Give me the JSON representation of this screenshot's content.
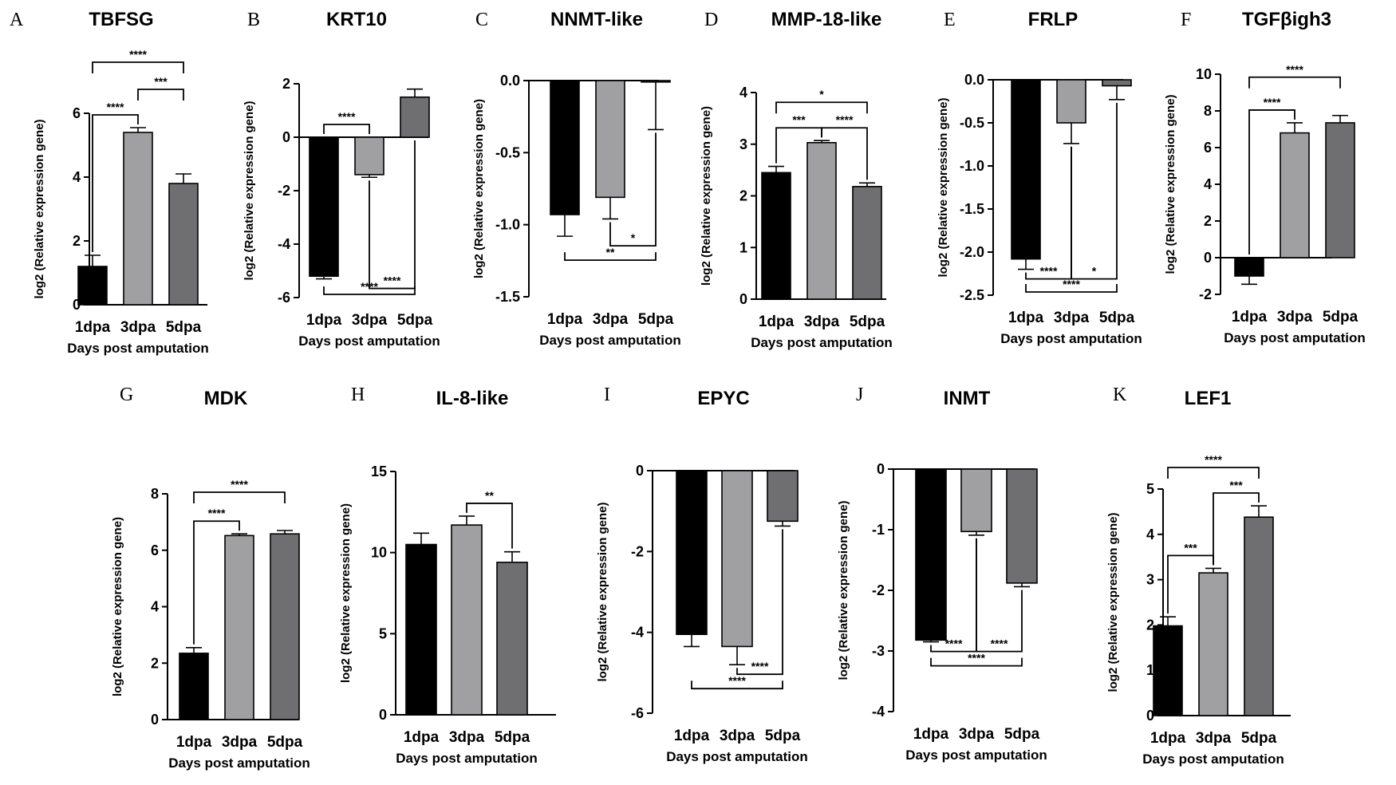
{
  "figure": {
    "bar_colors": [
      "#000000",
      "#a0a0a2",
      "#6f6f71"
    ],
    "categories": [
      "1dpa",
      "3dpa",
      "5dpa"
    ],
    "xlabel": "Days post amputation",
    "ylabel": "log2 (Relative expression gene)"
  },
  "chart_data": [
    {
      "letter": "A",
      "type": "bar",
      "title": "TBFSG",
      "categories": [
        "1dpa",
        "3dpa",
        "5dpa"
      ],
      "values": [
        1.2,
        5.4,
        3.8
      ],
      "errors": [
        0.35,
        0.15,
        0.3
      ],
      "ylim": [
        0,
        6
      ],
      "yticks": [
        0,
        2,
        4,
        6
      ],
      "ytick_labels": [
        "0",
        "2",
        "4",
        "6"
      ],
      "xlabel": "Days post amputation",
      "ylabel": "log2 (Relative expression gene)",
      "significance": [
        {
          "from": 0,
          "to": 1,
          "label": "****",
          "dir": "up",
          "level": 1
        },
        {
          "from": 1,
          "to": 2,
          "label": "***",
          "dir": "up",
          "level": 2
        },
        {
          "from": 0,
          "to": 2,
          "label": "****",
          "dir": "up",
          "level": 3
        }
      ]
    },
    {
      "letter": "B",
      "type": "bar",
      "title": "KRT10",
      "categories": [
        "1dpa",
        "3dpa",
        "5dpa"
      ],
      "values": [
        -5.2,
        -1.4,
        1.5
      ],
      "errors": [
        0.1,
        0.1,
        0.3
      ],
      "ylim": [
        -6,
        2
      ],
      "yticks": [
        -6,
        -4,
        -2,
        0,
        2
      ],
      "ytick_labels": [
        "-6",
        "-4",
        "-2",
        "0",
        "2"
      ],
      "xlabel": "Days post amputation",
      "ylabel": "log2 (Relative expression gene)",
      "significance": [
        {
          "from": 0,
          "to": 1,
          "label": "****",
          "dir": "up",
          "level": 1
        },
        {
          "from": 1,
          "to": 2,
          "label": "****",
          "dir": "down",
          "level": 1
        },
        {
          "from": 0,
          "to": 2,
          "label": "****",
          "dir": "down",
          "level": 2
        }
      ]
    },
    {
      "letter": "C",
      "type": "bar",
      "title": "NNMT-like",
      "categories": [
        "1dpa",
        "3dpa",
        "5dpa"
      ],
      "values": [
        -0.93,
        -0.81,
        -0.01
      ],
      "errors": [
        0.15,
        0.15,
        0.33
      ],
      "ylim": [
        -1.5,
        0
      ],
      "yticks": [
        -1.5,
        -1.0,
        -0.5,
        0.0
      ],
      "ytick_labels": [
        "-1.5",
        "-1.0",
        "-0.5",
        "0.0"
      ],
      "xlabel": "Days post amputation",
      "ylabel": "log2 (Relative expression gene)",
      "significance": [
        {
          "from": 1,
          "to": 2,
          "label": "*",
          "dir": "down",
          "level": 1
        },
        {
          "from": 0,
          "to": 2,
          "label": "**",
          "dir": "down",
          "level": 2
        }
      ]
    },
    {
      "letter": "D",
      "type": "bar",
      "title": "MMP-18-like",
      "categories": [
        "1dpa",
        "3dpa",
        "5dpa"
      ],
      "values": [
        2.45,
        3.03,
        2.18
      ],
      "errors": [
        0.12,
        0.04,
        0.07
      ],
      "ylim": [
        0,
        4
      ],
      "yticks": [
        0,
        1,
        2,
        3,
        4
      ],
      "ytick_labels": [
        "0",
        "1",
        "2",
        "3",
        "4"
      ],
      "xlabel": "Days post amputation",
      "ylabel": "log2 (Relative expression gene)",
      "significance": [
        {
          "from": 0,
          "to": 1,
          "label": "***",
          "dir": "up",
          "level": 1
        },
        {
          "from": 1,
          "to": 2,
          "label": "****",
          "dir": "up",
          "level": 1
        },
        {
          "from": 0,
          "to": 2,
          "label": "*",
          "dir": "up",
          "level": 2
        }
      ]
    },
    {
      "letter": "E",
      "type": "bar",
      "title": "FRLP",
      "categories": [
        "1dpa",
        "3dpa",
        "5dpa"
      ],
      "values": [
        -2.08,
        -0.5,
        -0.07
      ],
      "errors": [
        0.12,
        0.24,
        0.16
      ],
      "ylim": [
        -2.5,
        0
      ],
      "yticks": [
        -2.5,
        -2.0,
        -1.5,
        -1.0,
        -0.5,
        0.0
      ],
      "ytick_labels": [
        "-2.5",
        "-2.0",
        "-1.5",
        "-1.0",
        "-0.5",
        "0.0"
      ],
      "xlabel": "Days post amputation",
      "ylabel": "log2 (Relative expression gene)",
      "significance": [
        {
          "from": 0,
          "to": 1,
          "label": "****",
          "dir": "down",
          "level": 1
        },
        {
          "from": 1,
          "to": 2,
          "label": "*",
          "dir": "down",
          "level": 1
        },
        {
          "from": 0,
          "to": 2,
          "label": "****",
          "dir": "down",
          "level": 2
        }
      ]
    },
    {
      "letter": "F",
      "type": "bar",
      "title": "TGFβigh3",
      "categories": [
        "1dpa",
        "3dpa",
        "5dpa"
      ],
      "values": [
        -1.0,
        6.8,
        7.35
      ],
      "errors": [
        0.45,
        0.55,
        0.4
      ],
      "ylim": [
        -2,
        10
      ],
      "yticks": [
        -2,
        0,
        2,
        4,
        6,
        8,
        10
      ],
      "ytick_labels": [
        "-2",
        "0",
        "2",
        "4",
        "6",
        "8",
        "10"
      ],
      "xlabel": "Days post amputation",
      "ylabel": "log2 (Relative expression gene)",
      "significance": [
        {
          "from": 0,
          "to": 1,
          "label": "****",
          "dir": "up",
          "level": 1
        },
        {
          "from": 0,
          "to": 2,
          "label": "****",
          "dir": "up",
          "level": 2
        }
      ]
    },
    {
      "letter": "G",
      "type": "bar",
      "title": "MDK",
      "categories": [
        "1dpa",
        "3dpa",
        "5dpa"
      ],
      "values": [
        2.35,
        6.52,
        6.58
      ],
      "errors": [
        0.2,
        0.06,
        0.12
      ],
      "ylim": [
        0,
        8
      ],
      "yticks": [
        0,
        2,
        4,
        6,
        8
      ],
      "ytick_labels": [
        "0",
        "2",
        "4",
        "6",
        "8"
      ],
      "xlabel": "Days post amputation",
      "ylabel": "log2 (Relative expression gene)",
      "significance": [
        {
          "from": 0,
          "to": 1,
          "label": "****",
          "dir": "up",
          "level": 1
        },
        {
          "from": 0,
          "to": 2,
          "label": "****",
          "dir": "up",
          "level": 2
        }
      ]
    },
    {
      "letter": "H",
      "type": "bar",
      "title": "IL-8-like",
      "categories": [
        "1dpa",
        "3dpa",
        "5dpa"
      ],
      "values": [
        10.5,
        11.7,
        9.4
      ],
      "errors": [
        0.7,
        0.55,
        0.65
      ],
      "ylim": [
        0,
        15
      ],
      "yticks": [
        0,
        5,
        10,
        15
      ],
      "ytick_labels": [
        "0",
        "5",
        "10",
        "15"
      ],
      "xlabel": "Days post amputation",
      "ylabel": "log2 (Relative expression gene)",
      "significance": [
        {
          "from": 1,
          "to": 2,
          "label": "**",
          "dir": "up",
          "level": 1
        }
      ]
    },
    {
      "letter": "I",
      "type": "bar",
      "title": "EPYC",
      "categories": [
        "1dpa",
        "3dpa",
        "5dpa"
      ],
      "values": [
        -4.05,
        -4.35,
        -1.25
      ],
      "errors": [
        0.3,
        0.45,
        0.12
      ],
      "ylim": [
        -6,
        0
      ],
      "yticks": [
        -6,
        -4,
        -2,
        0
      ],
      "ytick_labels": [
        "-6",
        "-4",
        "-2",
        "0"
      ],
      "xlabel": "Days post amputation",
      "ylabel": "log2 (Relative expression gene)",
      "significance": [
        {
          "from": 1,
          "to": 2,
          "label": "****",
          "dir": "down",
          "level": 1
        },
        {
          "from": 0,
          "to": 2,
          "label": "****",
          "dir": "down",
          "level": 2
        }
      ]
    },
    {
      "letter": "J",
      "type": "bar",
      "title": "INMT",
      "categories": [
        "1dpa",
        "3dpa",
        "5dpa"
      ],
      "values": [
        -2.82,
        -1.03,
        -1.88
      ],
      "errors": [
        0.03,
        0.06,
        0.06
      ],
      "ylim": [
        -4,
        0
      ],
      "yticks": [
        -4,
        -3,
        -2,
        -1,
        0
      ],
      "ytick_labels": [
        "-4",
        "-3",
        "-2",
        "-1",
        "0"
      ],
      "xlabel": "Days post amputation",
      "ylabel": "log2 (Relative expression gene)",
      "significance": [
        {
          "from": 0,
          "to": 1,
          "label": "****",
          "dir": "down",
          "level": 1
        },
        {
          "from": 1,
          "to": 2,
          "label": "****",
          "dir": "down",
          "level": 1
        },
        {
          "from": 0,
          "to": 2,
          "label": "****",
          "dir": "down",
          "level": 2
        }
      ]
    },
    {
      "letter": "K",
      "type": "bar",
      "title": "LEF1",
      "categories": [
        "1dpa",
        "3dpa",
        "5dpa"
      ],
      "values": [
        1.98,
        3.15,
        4.38
      ],
      "errors": [
        0.2,
        0.1,
        0.25
      ],
      "ylim": [
        0,
        5
      ],
      "yticks": [
        0,
        1,
        2,
        3,
        4,
        5
      ],
      "ytick_labels": [
        "0",
        "1",
        "2",
        "3",
        "4",
        "5"
      ],
      "xlabel": "Days post amputation",
      "ylabel": "log2 (Relative expression gene)",
      "significance": [
        {
          "from": 0,
          "to": 1,
          "label": "***",
          "dir": "up",
          "level": 1
        },
        {
          "from": 1,
          "to": 2,
          "label": "***",
          "dir": "up",
          "level": 1
        },
        {
          "from": 0,
          "to": 2,
          "label": "****",
          "dir": "up",
          "level": 2
        }
      ]
    }
  ]
}
